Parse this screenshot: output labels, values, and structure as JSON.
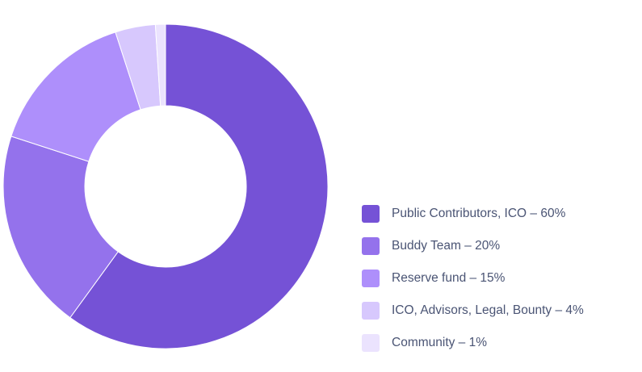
{
  "chart_data": {
    "type": "pie",
    "donut": true,
    "categories": [
      "Public Contributors, ICO",
      "Buddy Team",
      "Reserve fund",
      "ICO, Advisors, Legal, Bounty",
      "Community"
    ],
    "values": [
      60,
      20,
      15,
      4,
      1
    ],
    "unit": "%",
    "colors": [
      "#7552d6",
      "#9472ec",
      "#ae8ffb",
      "#d7c8fd",
      "#ebe3fe"
    ],
    "legend_position": "right",
    "legend_labels": [
      "Public Contributors, ICO – 60%",
      "Buddy Team – 20%",
      "Reserve fund – 15%",
      "ICO, Advisors, Legal, Bounty – 4%",
      "Community – 1%"
    ]
  }
}
